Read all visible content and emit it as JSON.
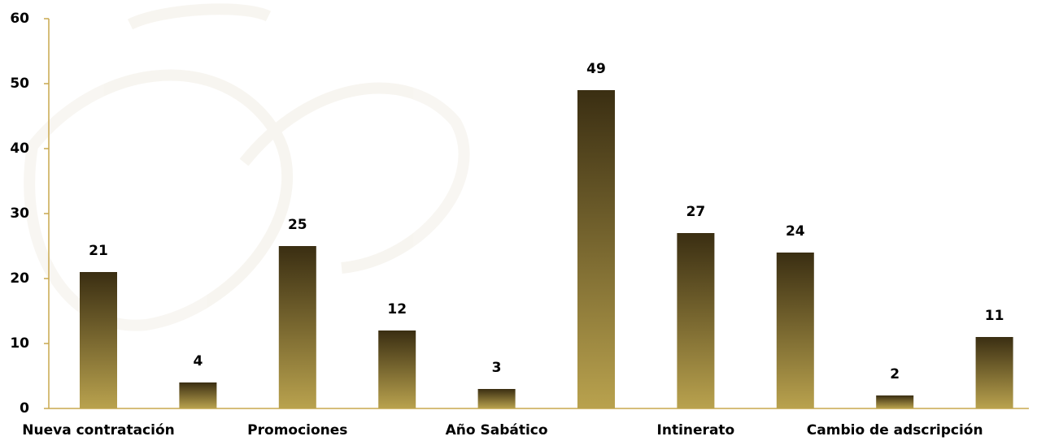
{
  "chart_data": {
    "type": "bar",
    "categories": [
      "Nueva contratación",
      null,
      "Promociones",
      null,
      "Año Sabático",
      null,
      "Intinerato",
      null,
      "Cambio de adscripción",
      null
    ],
    "values": [
      21,
      4,
      25,
      12,
      3,
      49,
      27,
      24,
      2,
      11
    ],
    "color": [
      "#3a2e12",
      "#b9a24e"
    ],
    "ylim": [
      0,
      60
    ],
    "yticks": [
      0,
      10,
      20,
      30,
      40,
      50,
      60
    ],
    "grid": false
  }
}
